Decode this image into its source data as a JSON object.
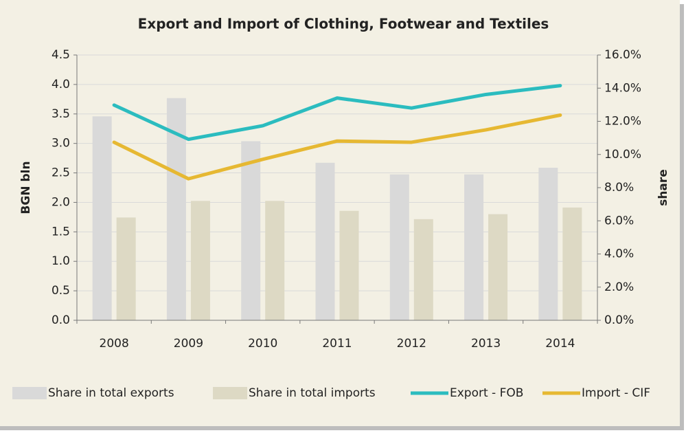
{
  "chart_data": {
    "type": "bar_line",
    "title": "Export and Import of Clothing, Footwear and Textiles",
    "ylabel": "BGN bln",
    "y2label": "share",
    "categories": [
      "2008",
      "2009",
      "2010",
      "2011",
      "2012",
      "2013",
      "2014"
    ],
    "series": [
      {
        "name": "Share in total exports",
        "type": "bar",
        "axis": "y2",
        "color": "#d9d9d9",
        "values": [
          12.3,
          13.4,
          10.8,
          9.5,
          8.8,
          8.8,
          9.2
        ]
      },
      {
        "name": "Share in total imports",
        "type": "bar",
        "axis": "y2",
        "color": "#ddd9c4",
        "values": [
          6.2,
          7.2,
          7.2,
          6.6,
          6.1,
          6.4,
          6.8
        ]
      },
      {
        "name": "Export - FOB",
        "type": "line",
        "color": "#2bbcbf",
        "values": [
          3.65,
          3.07,
          3.3,
          3.77,
          3.6,
          3.83,
          3.98
        ]
      },
      {
        "name": "Import - CIF",
        "type": "line",
        "color": "#e6b832",
        "values": [
          3.02,
          2.4,
          2.73,
          3.04,
          3.02,
          3.23,
          3.48
        ]
      }
    ],
    "ylim": [
      0,
      4.5
    ],
    "yticks": [
      {
        "value": 0,
        "label": "0.0"
      },
      {
        "value": 0.5,
        "label": "0.5"
      },
      {
        "value": 1,
        "label": "1.0"
      },
      {
        "value": 1.5,
        "label": "1.5"
      },
      {
        "value": 2,
        "label": "2.0"
      },
      {
        "value": 2.5,
        "label": "2.5"
      },
      {
        "value": 3,
        "label": "3.0"
      },
      {
        "value": 3.5,
        "label": "3.5"
      },
      {
        "value": 4,
        "label": "4.0"
      },
      {
        "value": 4.5,
        "label": "4.5"
      }
    ],
    "y2lim": [
      0,
      16
    ],
    "y2ticks": [
      {
        "value": 0,
        "label": "0.0%"
      },
      {
        "value": 2,
        "label": "2.0%"
      },
      {
        "value": 4,
        "label": "4.0%"
      },
      {
        "value": 6,
        "label": "6.0%"
      },
      {
        "value": 8,
        "label": "8.0%"
      },
      {
        "value": 10,
        "label": "10.0%"
      },
      {
        "value": 12,
        "label": "12.0%"
      },
      {
        "value": 14,
        "label": "14.0%"
      },
      {
        "value": 16,
        "label": "16.0%"
      }
    ],
    "grid": true,
    "legend": "bottom"
  }
}
